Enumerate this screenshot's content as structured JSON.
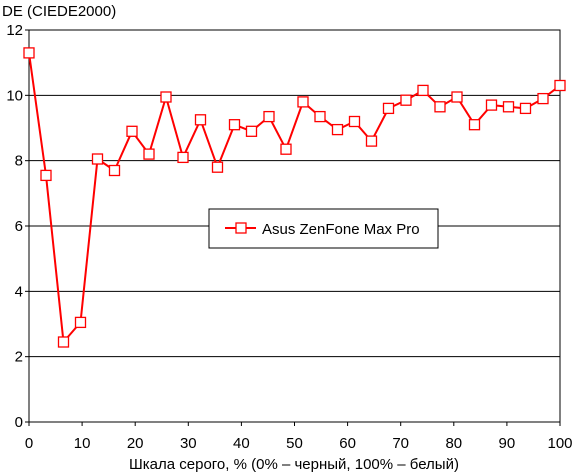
{
  "chart_data": {
    "type": "line",
    "title": "",
    "ylabel": "DE (CIEDE2000)",
    "xlabel": "Шкала серого, % (0% – черный, 100% – белый)",
    "xlim": [
      0,
      100
    ],
    "ylim": [
      0,
      12
    ],
    "xticks": [
      "0",
      "10",
      "20",
      "30",
      "40",
      "50",
      "60",
      "70",
      "80",
      "90",
      "100"
    ],
    "yticks": [
      "0",
      "2",
      "4",
      "6",
      "8",
      "10",
      "12"
    ],
    "grid": "horizontal",
    "legend_position": "center",
    "x": [
      0,
      3.2,
      6.5,
      9.7,
      12.9,
      16.1,
      19.4,
      22.6,
      25.8,
      29,
      32.3,
      35.5,
      38.7,
      41.9,
      45.2,
      48.4,
      51.6,
      54.8,
      58.1,
      61.3,
      64.5,
      67.7,
      71,
      74.2,
      77.4,
      80.6,
      83.9,
      87.1,
      90.3,
      93.5,
      96.8,
      100
    ],
    "series": [
      {
        "name": "Asus ZenFone Max Pro",
        "color": "#ff0000",
        "values": [
          11.3,
          7.55,
          2.45,
          3.05,
          8.05,
          7.7,
          8.9,
          8.2,
          9.95,
          8.1,
          9.25,
          7.8,
          9.1,
          8.9,
          9.35,
          8.35,
          9.8,
          9.35,
          8.95,
          9.2,
          8.6,
          9.6,
          9.85,
          10.15,
          9.65,
          9.95,
          9.1,
          9.7,
          9.65,
          9.6,
          9.9,
          10.3
        ]
      }
    ]
  }
}
